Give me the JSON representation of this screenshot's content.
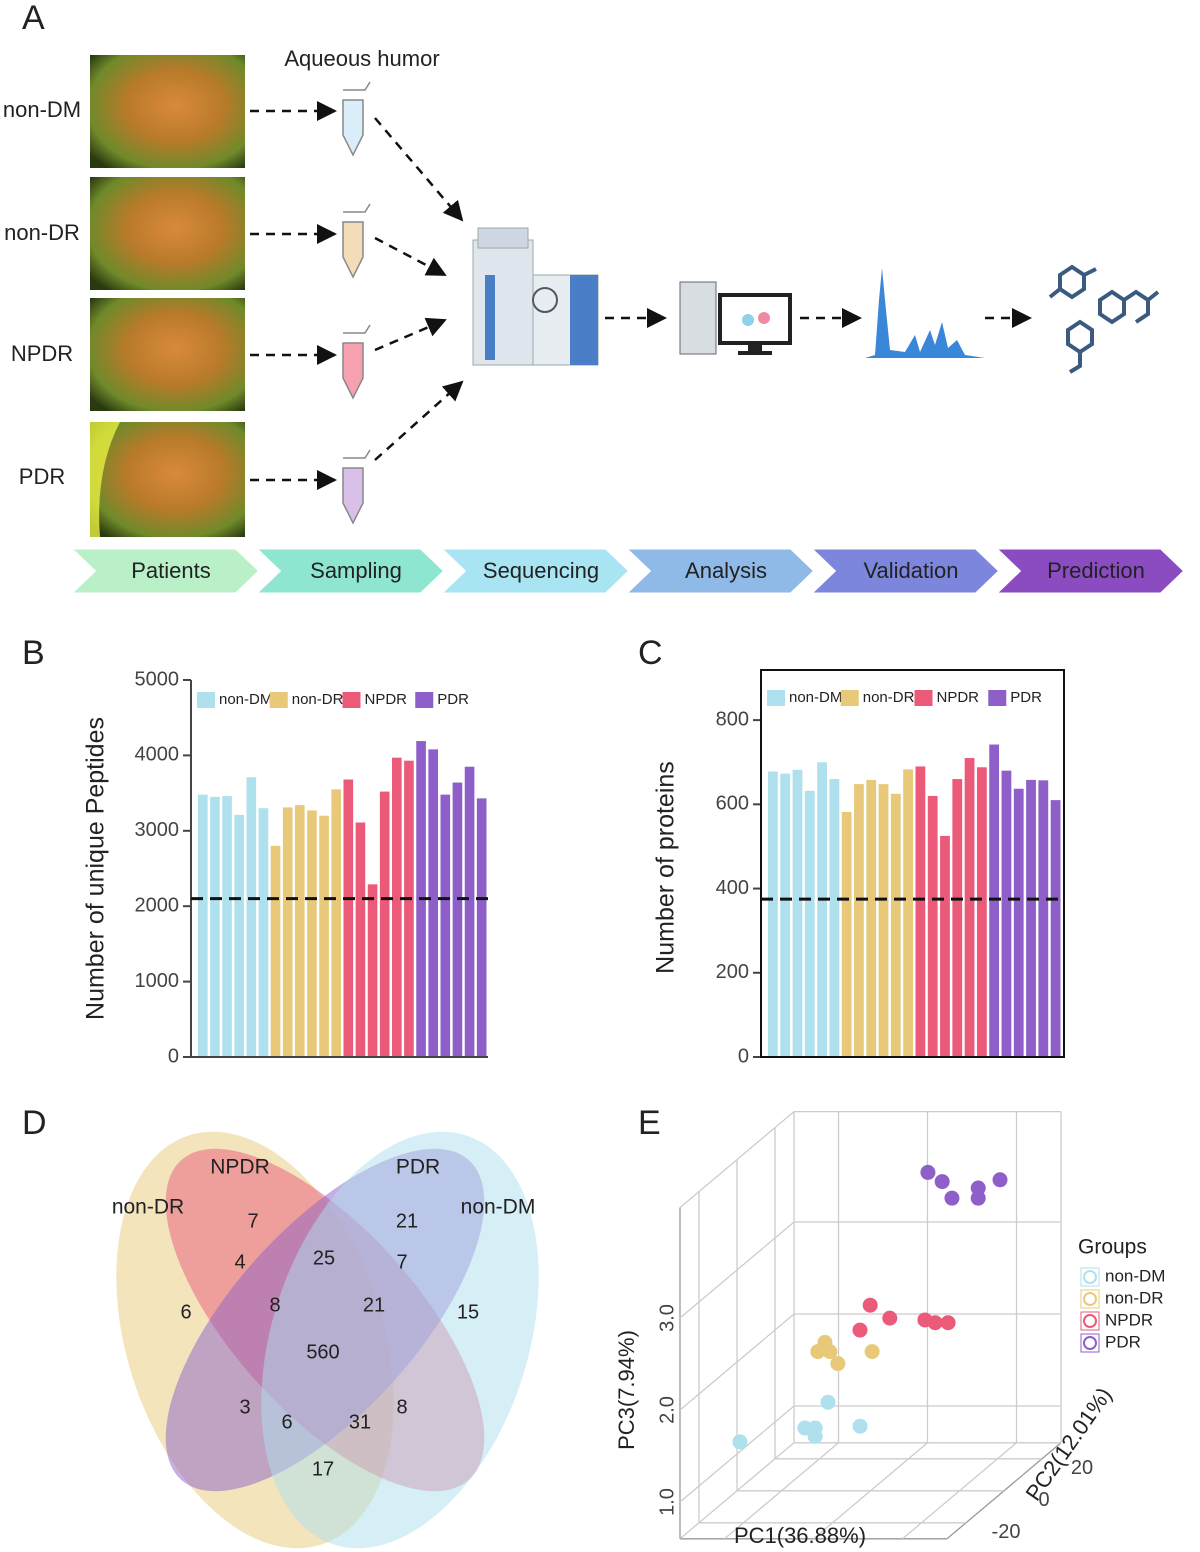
{
  "panel_labels": [
    "A",
    "B",
    "C",
    "D",
    "E"
  ],
  "workflow": {
    "groups": [
      "non-DM",
      "non-DR",
      "NPDR",
      "PDR"
    ],
    "sample_label": "Aqueous humor",
    "steps": [
      "Patients",
      "Sampling",
      "Sequencing",
      "Analysis",
      "Validation",
      "Prediction"
    ]
  },
  "chart_data": [
    {
      "type": "bar",
      "ylabel": "Number of unique Peptides",
      "ylim": [
        0,
        5000
      ],
      "yticks": [
        0,
        1000,
        2000,
        3000,
        4000,
        5000
      ],
      "reference_line": 2100,
      "frame": false,
      "legend": "top",
      "series": [
        {
          "name": "non-DM",
          "color": "#aee0ee",
          "values": [
            3480,
            3450,
            3460,
            3210,
            3710,
            3300
          ]
        },
        {
          "name": "non-DR",
          "color": "#e8c97a",
          "values": [
            2800,
            3310,
            3340,
            3270,
            3200,
            3550
          ]
        },
        {
          "name": "NPDR",
          "color": "#ec5a7a",
          "values": [
            3680,
            3110,
            2290,
            3520,
            3970,
            3930
          ]
        },
        {
          "name": "PDR",
          "color": "#8e5fc8",
          "values": [
            4190,
            4080,
            3480,
            3640,
            3850,
            3430
          ]
        }
      ]
    },
    {
      "type": "bar",
      "ylabel": "Number of proteins",
      "ylim": [
        0,
        900
      ],
      "yticks": [
        0,
        200,
        400,
        600,
        800
      ],
      "reference_line": 375,
      "frame": true,
      "legend": "top",
      "series": [
        {
          "name": "non-DM",
          "color": "#aee0ee",
          "values": [
            678,
            673,
            682,
            632,
            700,
            660
          ]
        },
        {
          "name": "non-DR",
          "color": "#e8c97a",
          "values": [
            582,
            648,
            658,
            648,
            625,
            683
          ]
        },
        {
          "name": "NPDR",
          "color": "#ec5a7a",
          "values": [
            690,
            620,
            525,
            660,
            710,
            688
          ]
        },
        {
          "name": "PDR",
          "color": "#8e5fc8",
          "values": [
            742,
            680,
            637,
            658,
            657,
            610
          ]
        }
      ]
    },
    {
      "type": "scatter3d",
      "xlabel": "PC1(36.88%)",
      "ylabel": "PC2(12.01%)",
      "zlabel": "PC3(7.94%)",
      "xlim": [
        -30,
        30
      ],
      "ylim": [
        -30,
        30
      ],
      "zlim": [
        0.6,
        4.2
      ],
      "xticks": [
        -20,
        0,
        20
      ],
      "yticks": [
        -20,
        0,
        20
      ],
      "zticks": [
        {
          "value": 1,
          "label": "1.0"
        },
        {
          "value": 2,
          "label": "2.0"
        },
        {
          "value": 3,
          "label": "3.0"
        }
      ],
      "grid": true,
      "legend_title": "Groups",
      "series": [
        {
          "name": "non-DM",
          "color": "#aee0ee",
          "x": [
            -20.8,
            -1.0,
            -6.2,
            -3.9,
            -3.9,
            6.2
          ],
          "y": [
            -20,
            -20,
            -20,
            -20,
            -20,
            -20
          ],
          "z": [
            1.48,
            1.91,
            1.63,
            1.54,
            1.63,
            1.65
          ]
        },
        {
          "name": "non-DR",
          "color": "#e8c97a",
          "x": [
            -8.1,
            -9.7,
            -7.0,
            -5.2,
            2.5
          ],
          "y": [
            -5,
            -5,
            -5,
            -5,
            -5
          ],
          "z": [
            2.3,
            2.2,
            2.2,
            2.07,
            2.2
          ]
        },
        {
          "name": "NPDR",
          "color": "#ec5a7a",
          "x": [
            -2.2,
            2.2,
            -4.5,
            10.1,
            12.4,
            15.3
          ],
          "y": [
            5,
            5,
            5,
            5,
            5,
            5
          ],
          "z": [
            2.53,
            2.39,
            2.26,
            2.37,
            2.34,
            2.34
          ]
        },
        {
          "name": "PDR",
          "color": "#8e5fc8",
          "x": [
            6.5,
            9.7,
            11.9,
            17.8,
            17.8,
            22.7
          ],
          "y": [
            15,
            15,
            15,
            15,
            15,
            15
          ],
          "z": [
            3.8,
            3.7,
            3.52,
            3.63,
            3.52,
            3.72
          ]
        }
      ]
    }
  ],
  "venn": {
    "sets": [
      {
        "name": "non-DR",
        "color": "#e8c97a"
      },
      {
        "name": "NPDR",
        "color": "#ec5a7a"
      },
      {
        "name": "PDR",
        "color": "#8e5fc8"
      },
      {
        "name": "non-DM",
        "color": "#aee0ee"
      }
    ],
    "regions": [
      7,
      21,
      4,
      25,
      7,
      6,
      8,
      21,
      15,
      560,
      3,
      6,
      31,
      8,
      17
    ]
  }
}
